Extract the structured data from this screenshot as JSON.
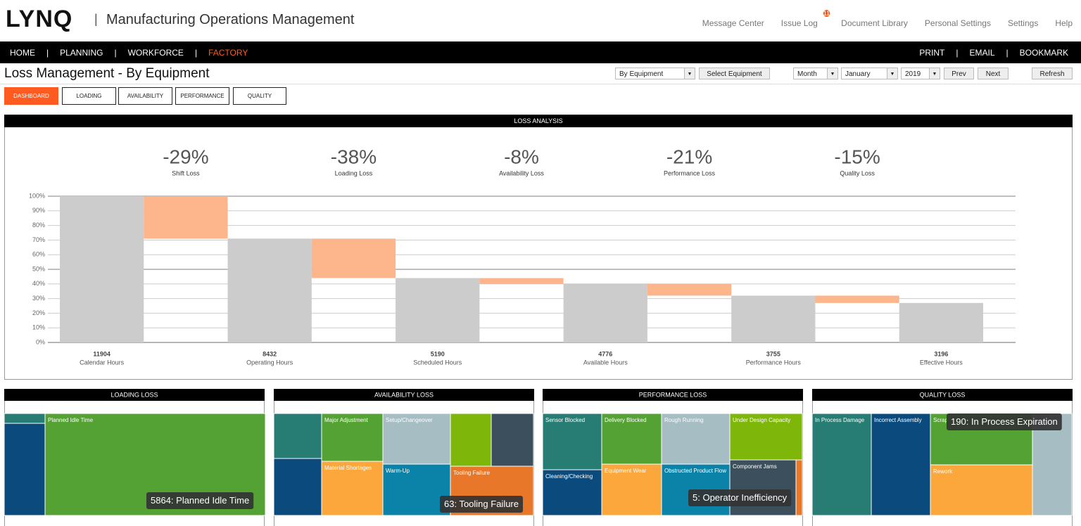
{
  "header": {
    "logo": "LYNQ",
    "title": "Manufacturing Operations Management",
    "links": [
      "Message Center",
      "Issue Log",
      "Document Library",
      "Personal Settings",
      "Settings",
      "Help"
    ],
    "badge": "11"
  },
  "nav": {
    "left": [
      "HOME",
      "PLANNING",
      "WORKFORCE",
      "FACTORY"
    ],
    "active": 3,
    "right": [
      "PRINT",
      "EMAIL",
      "BOOKMARK"
    ]
  },
  "page": {
    "title": "Loss Management - By Equipment",
    "view": "By Equipment",
    "select_button": "Select Equipment",
    "period": "Month",
    "month": "January",
    "year": "2019",
    "prev": "Prev",
    "next": "Next",
    "refresh": "Refresh"
  },
  "tabs": {
    "items": [
      "DASHBOARD",
      "LOADING",
      "AVAILABILITY",
      "PERFORMANCE",
      "QUALITY"
    ],
    "active": 0
  },
  "chart_data": {
    "type": "waterfall",
    "title": "LOSS ANALYSIS",
    "kpis": [
      {
        "value": "-29%",
        "label": "Shift Loss"
      },
      {
        "value": "-38%",
        "label": "Loading Loss"
      },
      {
        "value": "-8%",
        "label": "Availability Loss"
      },
      {
        "value": "-21%",
        "label": "Performance Loss"
      },
      {
        "value": "-15%",
        "label": "Quality Loss"
      }
    ],
    "categories": [
      "Calendar Hours",
      "Operating Hours",
      "Scheduled Hours",
      "Available Hours",
      "Performance Hours",
      "Effective Hours"
    ],
    "hours": [
      "11904",
      "8432",
      "5190",
      "4776",
      "3755",
      "3196"
    ],
    "totals": {
      "color": "#cccccc",
      "values": [
        100,
        71,
        44,
        40,
        32,
        27
      ]
    },
    "losses": {
      "color": "#fdb68c",
      "values": [
        29,
        27,
        4,
        8,
        5
      ]
    },
    "ylim": [
      0,
      100
    ],
    "yticks": [
      {
        "value": 0,
        "label": "0%"
      },
      {
        "value": 10,
        "label": "10%"
      },
      {
        "value": 20,
        "label": "20%"
      },
      {
        "value": 30,
        "label": "30%"
      },
      {
        "value": 40,
        "label": "40%"
      },
      {
        "value": 50,
        "label": "50%"
      },
      {
        "value": 60,
        "label": "60%"
      },
      {
        "value": 70,
        "label": "70%"
      },
      {
        "value": 80,
        "label": "80%"
      },
      {
        "value": 90,
        "label": "90%"
      },
      {
        "value": 100,
        "label": "100%"
      }
    ],
    "grid": true
  },
  "treemaps": [
    {
      "title": "LOADING LOSS",
      "tooltip": "5864: Planned Idle Time",
      "tiles": [
        {
          "color": "#277c73"
        },
        {
          "color": "#0b4a7d"
        },
        {
          "label": "Planned Idle Time",
          "color": "#55a234"
        }
      ]
    },
    {
      "title": "AVAILABILITY LOSS",
      "tooltip": "63: Tooling Failure",
      "tiles": [
        {
          "color": "#277c73"
        },
        {
          "color": "#0b4a7d"
        },
        {
          "label": "Major Adjustment",
          "color": "#55a234"
        },
        {
          "label": "Material Shortages",
          "color": "#fba73c"
        },
        {
          "label": "Setup/Changeover",
          "color": "#a7bdc4"
        },
        {
          "label": "Warm-Up",
          "color": "#0b82a8"
        },
        {
          "color": "#7fb60a"
        },
        {
          "color": "#3c4f5c"
        },
        {
          "label": "Tooling Failure",
          "color": "#e8772a"
        }
      ]
    },
    {
      "title": "PERFORMANCE LOSS",
      "tooltip": "5: Operator Inefficiency",
      "tiles": [
        {
          "label": "Sensor Blocked",
          "color": "#277c73"
        },
        {
          "label": "Cleaning/Checking",
          "color": "#0b4a7d"
        },
        {
          "label": "Delivery Blocked",
          "color": "#55a234"
        },
        {
          "label": "Equipment Wear",
          "color": "#fba73c"
        },
        {
          "label": "Rough Running",
          "color": "#a7bdc4"
        },
        {
          "label": "Obstructed Product Flow",
          "color": "#0b82a8"
        },
        {
          "label": "Under Design Capacity",
          "color": "#7fb60a"
        },
        {
          "label": "Component Jams",
          "color": "#3c4f5c"
        },
        {
          "color": "#e8772a"
        }
      ]
    },
    {
      "title": "QUALITY LOSS",
      "tooltip": "190: In Process Expiration",
      "tiles": [
        {
          "label": "In Process Damage",
          "color": "#277c73"
        },
        {
          "label": "Incorrect Assembly",
          "color": "#0b4a7d"
        },
        {
          "label": "Scrap",
          "color": "#55a234"
        },
        {
          "label": "Rework",
          "color": "#fba73c"
        },
        {
          "color": "#a7bdc4"
        }
      ]
    }
  ]
}
